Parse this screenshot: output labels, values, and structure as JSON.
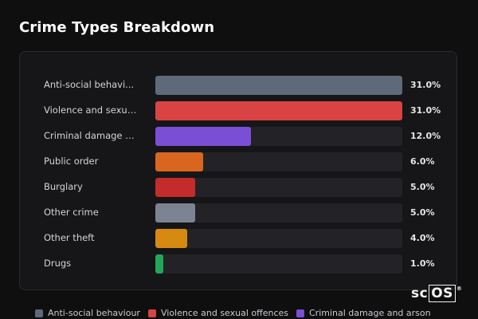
{
  "page": {
    "title": "Crime Types Breakdown"
  },
  "chart_data": {
    "type": "bar",
    "orientation": "horizontal",
    "title": "Crime Types Breakdown",
    "categories": [
      "Anti-social behavi...",
      "Violence and sexua...",
      "Criminal damage an...",
      "Public order",
      "Burglary",
      "Other crime",
      "Other theft",
      "Drugs"
    ],
    "values": [
      31.0,
      31.0,
      12.0,
      6.0,
      5.0,
      5.0,
      4.0,
      1.0
    ],
    "value_labels": [
      "31.0%",
      "31.0%",
      "12.0%",
      "6.0%",
      "5.0%",
      "5.0%",
      "4.0%",
      "1.0%"
    ],
    "colors": [
      "#5e6a7a",
      "#d94343",
      "#7a4fd6",
      "#d9661f",
      "#c42b2b",
      "#7c8494",
      "#d68a12",
      "#22a85a"
    ],
    "xlim": [
      0,
      31.0
    ],
    "unit": "%",
    "grid": false
  },
  "legend": {
    "items": [
      {
        "label": "Anti-social behaviour",
        "color": "#5e6a7a"
      },
      {
        "label": "Violence and sexual offences",
        "color": "#d94343"
      },
      {
        "label": "Criminal damage and arson",
        "color": "#7a4fd6"
      }
    ]
  },
  "brand": {
    "left": "sc",
    "boxed": "OS",
    "mark": "®"
  }
}
